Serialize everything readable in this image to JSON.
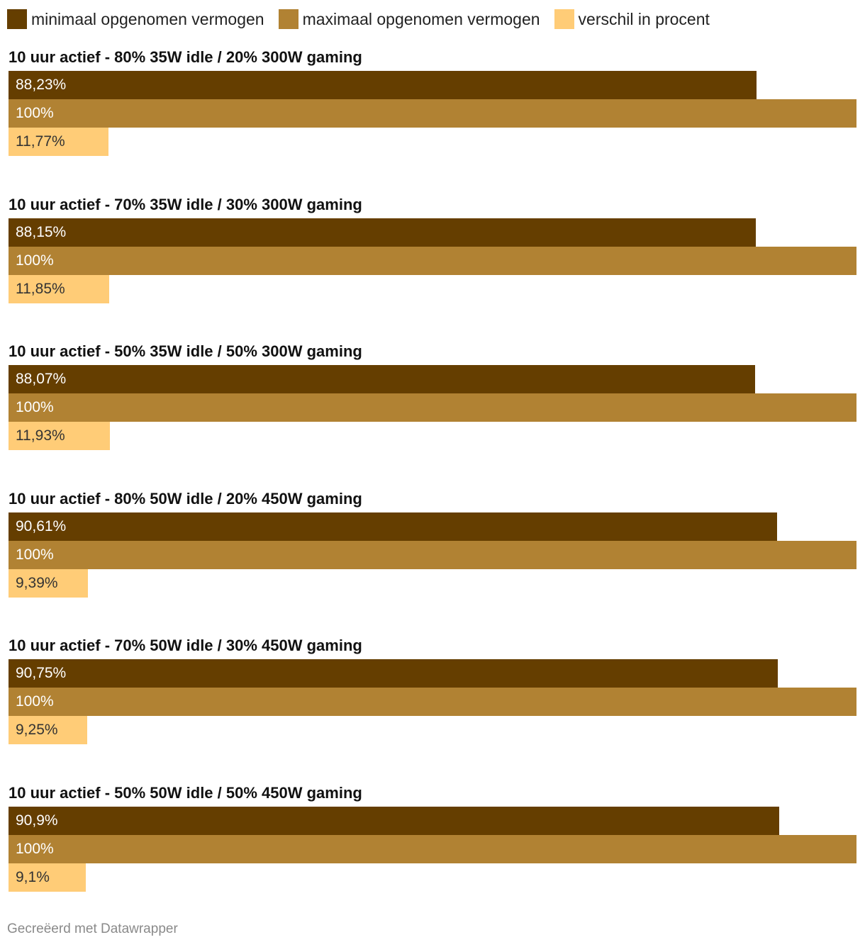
{
  "chart_data": {
    "type": "bar",
    "orientation": "horizontal",
    "xlim": [
      0,
      100
    ],
    "legend_placement": "top-left",
    "series": [
      {
        "name": "minimaal opgenomen vermogen",
        "color": "#653e00"
      },
      {
        "name": "maximaal opgenomen vermogen",
        "color": "#b18233"
      },
      {
        "name": "verschil in procent",
        "color": "#ffcc77"
      }
    ],
    "groups": [
      {
        "title": "10 uur actief - 80% 35W idle / 20% 300W gaming",
        "values": [
          88.23,
          100,
          11.77
        ],
        "labels": [
          "88,23%",
          "100%",
          "11,77%"
        ]
      },
      {
        "title": "10 uur actief - 70% 35W idle / 30% 300W gaming",
        "values": [
          88.15,
          100,
          11.85
        ],
        "labels": [
          "88,15%",
          "100%",
          "11,85%"
        ]
      },
      {
        "title": "10 uur actief - 50% 35W idle / 50% 300W gaming",
        "values": [
          88.07,
          100,
          11.93
        ],
        "labels": [
          "88,07%",
          "100%",
          "11,93%"
        ]
      },
      {
        "title": "10 uur actief - 80% 50W idle / 20% 450W gaming",
        "values": [
          90.61,
          100,
          9.39
        ],
        "labels": [
          "90,61%",
          "100%",
          "9,39%"
        ]
      },
      {
        "title": "10 uur actief - 70% 50W idle / 30% 450W gaming",
        "values": [
          90.75,
          100,
          9.25
        ],
        "labels": [
          "90,75%",
          "100%",
          "9,25%"
        ]
      },
      {
        "title": "10 uur actief - 50% 50W idle / 50% 450W gaming",
        "values": [
          90.9,
          100,
          9.1
        ],
        "labels": [
          "90,9%",
          "100%",
          "9,1%"
        ]
      }
    ],
    "label_colors": [
      "#ffffff",
      "#ffffff",
      "#333333"
    ]
  },
  "footer": {
    "credit": "Gecreëerd met Datawrapper"
  }
}
